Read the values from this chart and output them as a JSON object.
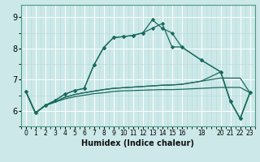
{
  "xlabel": "Humidex (Indice chaleur)",
  "bg_color": "#cce8e8",
  "line_color": "#1a6b5e",
  "grid_major_color": "#ffffff",
  "grid_minor_color": "#b8d8d8",
  "ylim": [
    5.5,
    9.4
  ],
  "xlim": [
    -0.5,
    23.5
  ],
  "yticks": [
    6,
    7,
    8,
    9
  ],
  "xtick_positions": [
    0,
    1,
    2,
    3,
    4,
    5,
    6,
    7,
    8,
    9,
    10,
    11,
    12,
    13,
    14,
    15,
    16,
    18,
    20,
    21,
    22,
    23
  ],
  "xtick_labels": [
    "0",
    "1",
    "2",
    "3",
    "4",
    "5",
    "6",
    "7",
    "8",
    "9",
    "10",
    "11",
    "12",
    "13",
    "14",
    "15",
    "16",
    "18",
    "20",
    "21",
    "22",
    "23"
  ],
  "line1_x": [
    0,
    1,
    2,
    3,
    4,
    5,
    6,
    7,
    8,
    9,
    10,
    11,
    12,
    13,
    14,
    15,
    16,
    18,
    20,
    21,
    22,
    23
  ],
  "line1_y": [
    6.63,
    5.93,
    6.17,
    6.28,
    6.38,
    6.45,
    6.5,
    6.55,
    6.58,
    6.62,
    6.64,
    6.65,
    6.66,
    6.67,
    6.68,
    6.68,
    6.69,
    6.72,
    6.75,
    6.75,
    6.75,
    6.58
  ],
  "line2_x": [
    0,
    1,
    2,
    3,
    4,
    5,
    6,
    7,
    8,
    9,
    10,
    11,
    12,
    13,
    14,
    15,
    16,
    18,
    20,
    21,
    22,
    23
  ],
  "line2_y": [
    6.63,
    5.93,
    6.17,
    6.28,
    6.43,
    6.52,
    6.58,
    6.63,
    6.68,
    6.72,
    6.74,
    6.76,
    6.78,
    6.8,
    6.82,
    6.83,
    6.85,
    6.95,
    7.05,
    7.05,
    7.05,
    6.58
  ],
  "line3_x": [
    0,
    1,
    2,
    3,
    4,
    5,
    6,
    7,
    8,
    9,
    10,
    11,
    12,
    13,
    14,
    15,
    16,
    18,
    20,
    21,
    22,
    23
  ],
  "line3_y": [
    6.63,
    5.93,
    6.17,
    6.28,
    6.43,
    6.52,
    6.58,
    6.63,
    6.68,
    6.72,
    6.74,
    6.76,
    6.78,
    6.8,
    6.82,
    6.83,
    6.85,
    6.95,
    7.25,
    6.3,
    5.75,
    6.58
  ],
  "line4_x": [
    0,
    1,
    2,
    3,
    4,
    5,
    6,
    7,
    8,
    9,
    10,
    11,
    12,
    13,
    14,
    15,
    16,
    18,
    20,
    21,
    22,
    23
  ],
  "line4_y": [
    6.63,
    5.93,
    6.17,
    6.33,
    6.53,
    6.65,
    6.72,
    7.47,
    8.03,
    8.35,
    8.38,
    8.42,
    8.5,
    8.65,
    8.8,
    8.05,
    8.05,
    7.63,
    7.25,
    6.3,
    5.75,
    6.58
  ],
  "line5_x": [
    0,
    1,
    2,
    3,
    4,
    5,
    6,
    7,
    8,
    9,
    10,
    11,
    12,
    13,
    14,
    15,
    16,
    18,
    20,
    21,
    22,
    23
  ],
  "line5_y": [
    6.63,
    5.93,
    6.17,
    6.33,
    6.53,
    6.65,
    6.72,
    7.47,
    8.03,
    8.35,
    8.38,
    8.42,
    8.5,
    8.92,
    8.65,
    8.5,
    8.05,
    7.63,
    7.25,
    6.3,
    5.75,
    6.58
  ]
}
